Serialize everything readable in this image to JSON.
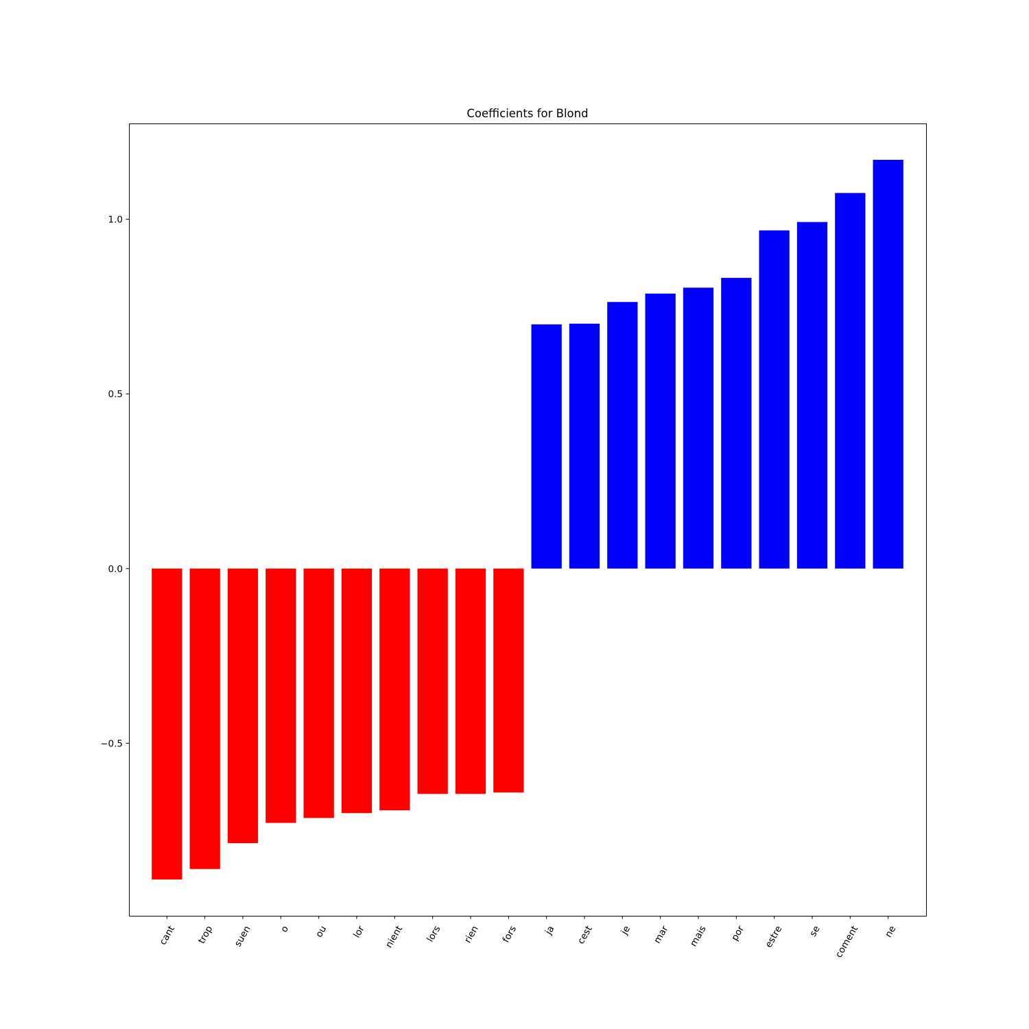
{
  "chart_data": {
    "type": "bar",
    "title": "Coefficients for Blond",
    "xlabel": "",
    "ylabel": "",
    "categories": [
      "cant",
      "trop",
      "suen",
      "o",
      "ou",
      "lor",
      "nient",
      "lors",
      "rien",
      "fors",
      "ja",
      "cest",
      "je",
      "mar",
      "mais",
      "por",
      "estre",
      "se",
      "coment",
      "ne"
    ],
    "values": [
      -0.89,
      -0.86,
      -0.786,
      -0.728,
      -0.714,
      -0.7,
      -0.692,
      -0.645,
      -0.645,
      -0.641,
      0.699,
      0.701,
      0.763,
      0.787,
      0.804,
      0.832,
      0.968,
      0.992,
      1.075,
      1.17
    ],
    "bar_colors": [
      "#ff0000",
      "#ff0000",
      "#ff0000",
      "#ff0000",
      "#ff0000",
      "#ff0000",
      "#ff0000",
      "#ff0000",
      "#ff0000",
      "#ff0000",
      "#0000ff",
      "#0000ff",
      "#0000ff",
      "#0000ff",
      "#0000ff",
      "#0000ff",
      "#0000ff",
      "#0000ff",
      "#0000ff",
      "#0000ff"
    ],
    "ylim": [
      -0.994,
      1.274
    ],
    "yticks": [
      -0.5,
      0.0,
      0.5,
      1.0
    ],
    "ytick_labels": [
      "−0.5",
      "0.0",
      "0.5",
      "1.0"
    ],
    "grid": false,
    "legend": false
  }
}
